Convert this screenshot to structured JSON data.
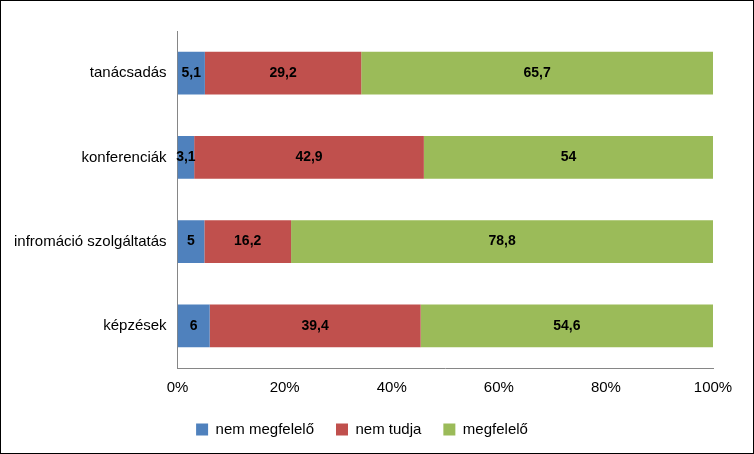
{
  "chart_data": {
    "type": "bar",
    "orientation": "horizontal",
    "stacked": true,
    "data_labels": true,
    "grid": false,
    "legend": "bottom",
    "categories": [
      "tanácsadás",
      "konferenciák",
      "infromáció szolgáltatás",
      "képzések"
    ],
    "series": [
      {
        "name": "nem megfelelő",
        "color": "#4f81bd",
        "values": [
          5.1,
          3.1,
          5,
          6
        ],
        "value_labels": [
          "5,1",
          "3,1",
          "5",
          "6"
        ]
      },
      {
        "name": "nem tudja",
        "color": "#c0504d",
        "values": [
          29.2,
          42.9,
          16.2,
          39.4
        ],
        "value_labels": [
          "29,2",
          "42,9",
          "16,2",
          "39,4"
        ]
      },
      {
        "name": "megfelelő",
        "color": "#9bbb59",
        "values": [
          65.7,
          54,
          78.8,
          54.6
        ],
        "value_labels": [
          "65,7",
          "54",
          "78,8",
          "54,6"
        ]
      }
    ],
    "xlim": [
      0,
      100
    ],
    "xticks": [
      {
        "value": 0,
        "label": "0%"
      },
      {
        "value": 20,
        "label": "20%"
      },
      {
        "value": 40,
        "label": "40%"
      },
      {
        "value": 60,
        "label": "60%"
      },
      {
        "value": 80,
        "label": "80%"
      },
      {
        "value": 100,
        "label": "100%"
      }
    ]
  }
}
